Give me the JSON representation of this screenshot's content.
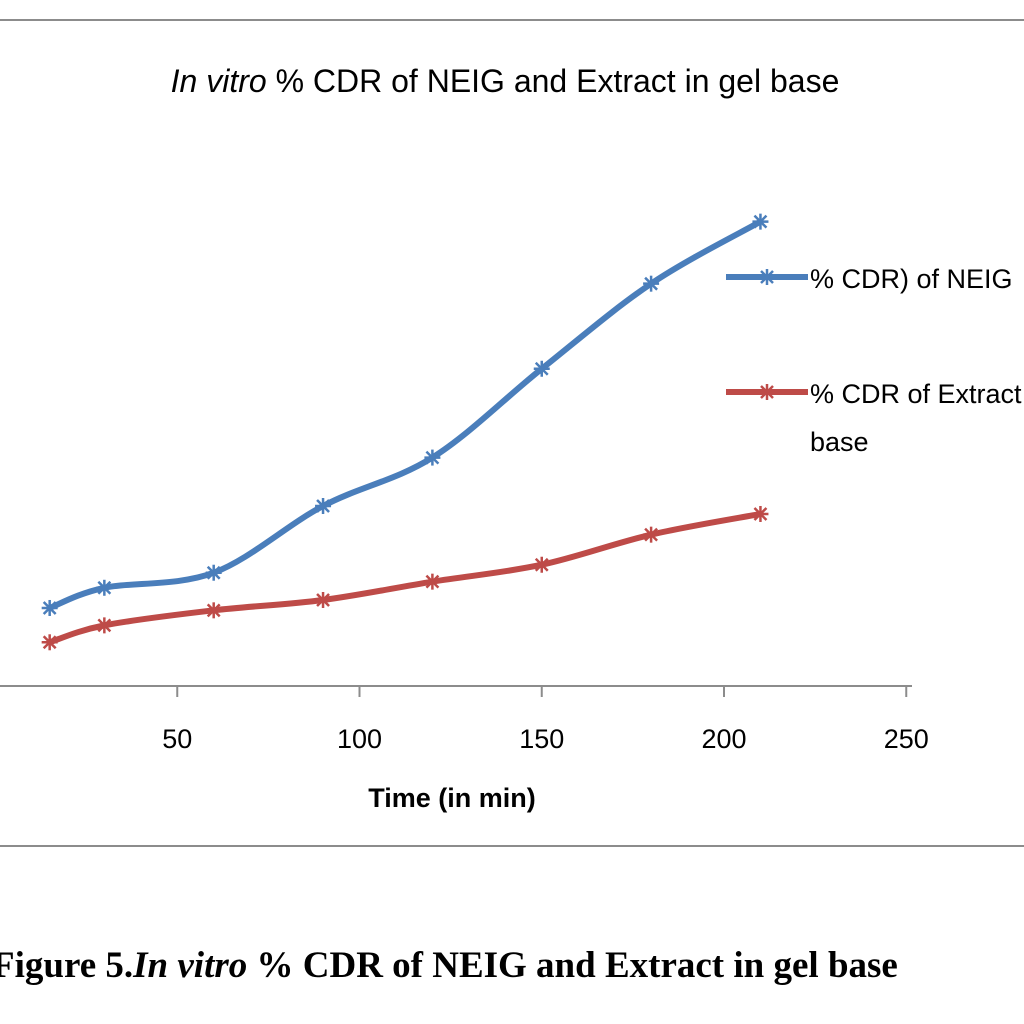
{
  "chart_data": {
    "type": "line",
    "title_italic": "In vitro",
    "title_rest": " % CDR of NEIG and Extract in gel base",
    "xlabel": "Time (in min)",
    "ylabel": "",
    "xlim": [
      0,
      250
    ],
    "ylim": [
      0,
      100
    ],
    "x_ticks": [
      50,
      100,
      150,
      200,
      250
    ],
    "grid": false,
    "legend_position": "right",
    "series": [
      {
        "name_lines": [
          "% CDR) of NEIG"
        ],
        "color": "#4a7ebb",
        "x": [
          15,
          30,
          60,
          90,
          120,
          150,
          180,
          210
        ],
        "y": [
          16.6,
          20.9,
          24.1,
          38.3,
          48.6,
          67.5,
          85.6,
          98.8
        ]
      },
      {
        "name_lines": [
          "% CDR of Extract in gel",
          "base"
        ],
        "color": "#be4b48",
        "x": [
          15,
          30,
          60,
          90,
          120,
          150,
          180,
          210
        ],
        "y": [
          9.3,
          12.9,
          16.1,
          18.3,
          22.2,
          25.8,
          32.2,
          36.6
        ]
      }
    ]
  },
  "caption": {
    "prefix": "Figure  5.",
    "italic": "In vitro",
    "rest": " % CDR of NEIG and Extract in gel base"
  }
}
